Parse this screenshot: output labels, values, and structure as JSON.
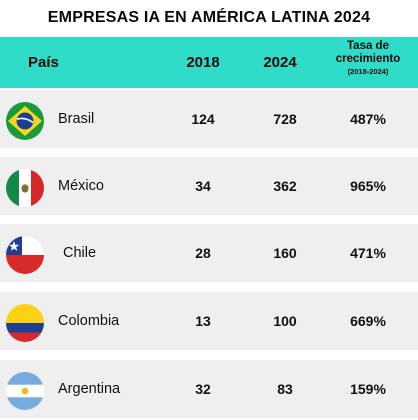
{
  "title": "EMPRESAS IA EN AMÉRICA LATINA 2024",
  "header": {
    "country": "País",
    "y2018": "2018",
    "y2024": "2024",
    "growth_line1": "Tasa de",
    "growth_line2": "crecimiento",
    "growth_line3": "(2018-2024)"
  },
  "rows": [
    {
      "country": "Brasil",
      "flag_icon": "brazil-flag-icon",
      "y2018": "124",
      "y2024": "728",
      "growth": "487%"
    },
    {
      "country": "México",
      "flag_icon": "mexico-flag-icon",
      "y2018": "34",
      "y2024": "362",
      "growth": "965%"
    },
    {
      "country": "Chile",
      "flag_icon": "chile-flag-icon",
      "y2018": "28",
      "y2024": "160",
      "growth": "471%"
    },
    {
      "country": "Colombia",
      "flag_icon": "colombia-flag-icon",
      "y2018": "13",
      "y2024": "100",
      "growth": "669%"
    },
    {
      "country": "Argentina",
      "flag_icon": "argentina-flag-icon",
      "y2018": "32",
      "y2024": "83",
      "growth": "159%"
    }
  ],
  "colors": {
    "header_bg": "#2fdcc8",
    "row_bg": "#efefef"
  }
}
